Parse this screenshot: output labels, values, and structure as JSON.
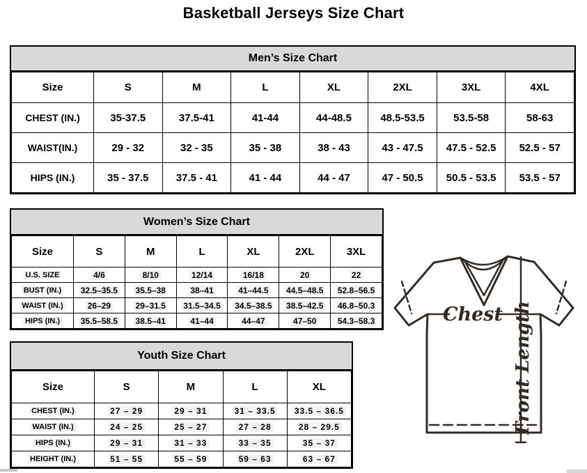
{
  "page": {
    "title": "Basketball Jerseys Size Chart"
  },
  "colors": {
    "header_band": "#d9d9d9",
    "border": "#000000",
    "jersey_outline": "#342a24"
  },
  "tables": {
    "mens": {
      "title": "Men’s Size Chart",
      "columns": [
        "Size",
        "S",
        "M",
        "L",
        "XL",
        "2XL",
        "3XL",
        "4XL"
      ],
      "rows": [
        {
          "label": "CHEST (IN.)",
          "values": [
            "35-37.5",
            "37.5-41",
            "41-44",
            "44-48.5",
            "48.5-53.5",
            "53.5-58",
            "58-63"
          ]
        },
        {
          "label": "WAIST(IN.)",
          "values": [
            "29 - 32",
            "32 - 35",
            "35 - 38",
            "38 - 43",
            "43 - 47.5",
            "47.5 - 52.5",
            "52.5 - 57"
          ]
        },
        {
          "label": "HIPS (IN.)",
          "values": [
            "35 - 37.5",
            "37.5 - 41",
            "41 - 44",
            "44 - 47",
            "47 - 50.5",
            "50.5 - 53.5",
            "53.5 - 57"
          ]
        }
      ]
    },
    "womens": {
      "title": "Women’s Size Chart",
      "columns": [
        "Size",
        "S",
        "M",
        "L",
        "XL",
        "2XL",
        "3XL"
      ],
      "rows": [
        {
          "label": "U.S. SIZE",
          "values": [
            "4/6",
            "8/10",
            "12/14",
            "16/18",
            "20",
            "22"
          ]
        },
        {
          "label": "BUST (IN.)",
          "values": [
            "32.5–35.5",
            "35.5–38",
            "38–41",
            "41–44.5",
            "44.5–48.5",
            "52.8–56.5"
          ]
        },
        {
          "label": "WAIST (IN.)",
          "values": [
            "26–29",
            "29–31.5",
            "31.5–34.5",
            "34.5–38.5",
            "38.5–42.5",
            "46.8–50.3"
          ]
        },
        {
          "label": "HIPS (IN.)",
          "values": [
            "35.5–58.5",
            "38.5–41",
            "41–44",
            "44–47",
            "47–50",
            "54.3–58.3"
          ]
        }
      ]
    },
    "youth": {
      "title": "Youth Size Chart",
      "columns": [
        "Size",
        "S",
        "M",
        "L",
        "XL"
      ],
      "rows": [
        {
          "label": "CHEST (IN.)",
          "values": [
            "27 – 29",
            "29 – 31",
            "31 – 33.5",
            "33.5 – 36.5"
          ]
        },
        {
          "label": "WAIST (IN.)",
          "values": [
            "24 – 25",
            "25 – 27",
            "27 – 28",
            "28 – 29.5"
          ]
        },
        {
          "label": "HIPS (IN.)",
          "values": [
            "29 – 31",
            "31 – 33",
            "33 – 35",
            "35 – 37"
          ]
        },
        {
          "label": "HEIGHT (IN.)",
          "values": [
            "51 – 55",
            "55 – 59",
            "59 – 63",
            "63 – 67"
          ]
        }
      ]
    }
  },
  "diagram": {
    "chest_label": "Chest",
    "front_length_label": "Front Length"
  }
}
